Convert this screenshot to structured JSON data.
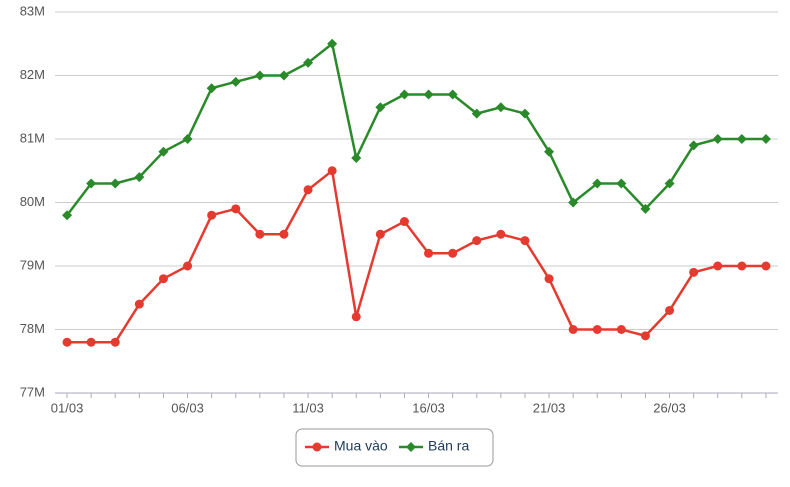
{
  "chart_data": {
    "type": "line",
    "categories": [
      "01/03",
      null,
      null,
      null,
      null,
      "06/03",
      null,
      null,
      null,
      null,
      "11/03",
      null,
      null,
      null,
      null,
      "16/03",
      null,
      null,
      null,
      null,
      "21/03",
      null,
      null,
      null,
      null,
      "26/03",
      null,
      null,
      null,
      null
    ],
    "series": [
      {
        "name": "Mua vào",
        "color": "#e53a2f",
        "marker": "circle",
        "values": [
          77800000,
          77800000,
          77800000,
          78400000,
          78800000,
          79000000,
          79800000,
          79900000,
          79500000,
          79500000,
          80200000,
          80500000,
          78200000,
          79500000,
          79700000,
          79200000,
          79200000,
          79400000,
          79500000,
          79400000,
          78800000,
          78000000,
          78000000,
          78000000,
          77900000,
          78300000,
          78900000,
          79000000,
          79000000,
          79000000
        ]
      },
      {
        "name": "Bán ra",
        "color": "#2a8a2a",
        "marker": "diamond",
        "values": [
          79800000,
          80300000,
          80300000,
          80400000,
          80800000,
          81000000,
          81800000,
          81900000,
          82000000,
          82000000,
          82200000,
          82500000,
          80700000,
          81500000,
          81700000,
          81700000,
          81700000,
          81400000,
          81500000,
          81400000,
          80800000,
          80000000,
          80300000,
          80300000,
          79900000,
          80300000,
          80900000,
          81000000,
          81000000,
          81000000
        ]
      }
    ],
    "ylim": [
      77000000,
      83000000
    ],
    "yticks": [
      {
        "value": 77000000,
        "label": "77M"
      },
      {
        "value": 78000000,
        "label": "78M"
      },
      {
        "value": 79000000,
        "label": "79M"
      },
      {
        "value": 80000000,
        "label": "80M"
      },
      {
        "value": 81000000,
        "label": "81M"
      },
      {
        "value": 82000000,
        "label": "82M"
      },
      {
        "value": 83000000,
        "label": "83M"
      }
    ],
    "grid": true,
    "legend": "bottom"
  }
}
